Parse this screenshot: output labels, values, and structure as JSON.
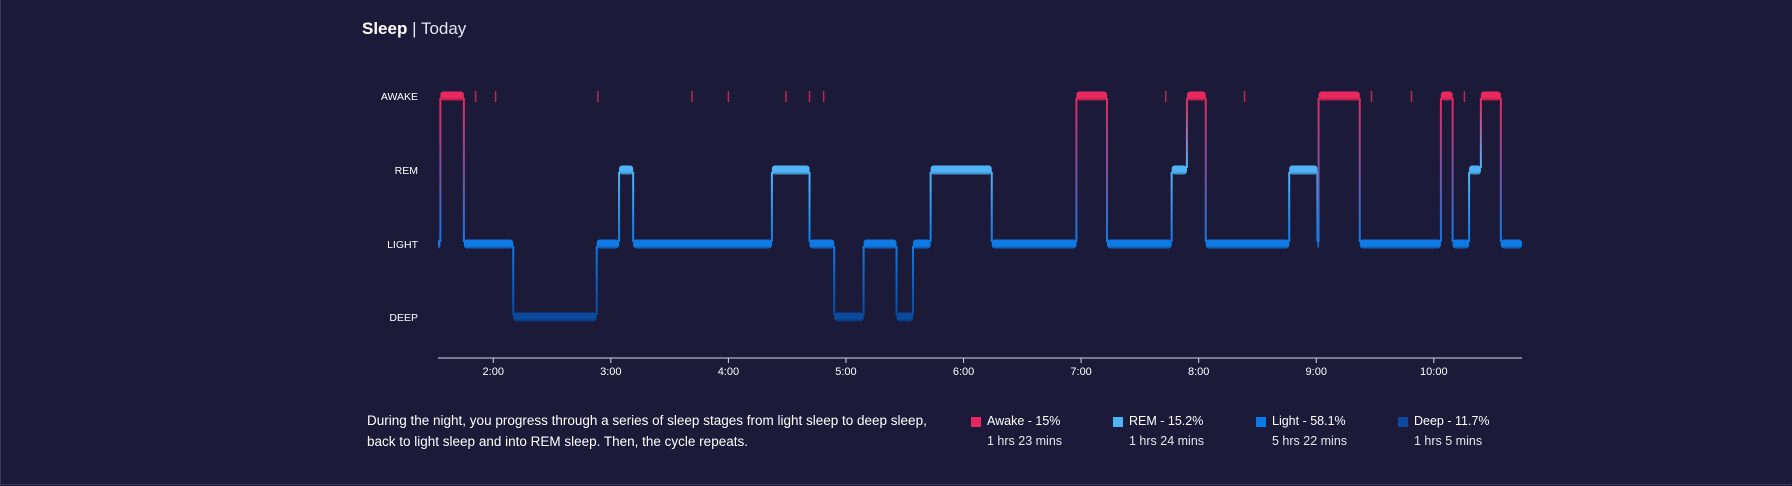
{
  "header": {
    "title": "Sleep",
    "separator": "|",
    "subtitle": "Today"
  },
  "description": "During the night, you progress through a series of sleep stages from light sleep to deep sleep, back to light sleep and into REM sleep. Then, the cycle repeats.",
  "legend": [
    {
      "label": "Awake - 15%",
      "duration": "1 hrs 23 mins",
      "color": "#e9285f"
    },
    {
      "label": "REM - 15.2%",
      "duration": "1 hrs 24 mins",
      "color": "#4fb4f7"
    },
    {
      "label": "Light - 58.1%",
      "duration": "5 hrs 22 mins",
      "color": "#0f7ae5"
    },
    {
      "label": "Deep - 11.7%",
      "duration": "1 hrs 5 mins",
      "color": "#0b4a9c"
    }
  ],
  "chart_data": {
    "type": "area",
    "stages": [
      "AWAKE",
      "REM",
      "LIGHT",
      "DEEP"
    ],
    "x_ticks": [
      "2:00",
      "3:00",
      "4:00",
      "5:00",
      "6:00",
      "7:00",
      "8:00",
      "9:00",
      "10:00"
    ],
    "x_tick_hours": [
      2,
      3,
      4,
      5,
      6,
      7,
      8,
      9,
      10
    ],
    "x_range_hours": [
      1.53,
      10.75
    ],
    "stage_colors": {
      "AWAKE": "#e9285f",
      "REM": "#4fb4f7",
      "LIGHT": "#0f7ae5",
      "DEEP": "#0b4a9c"
    },
    "segments": [
      {
        "stage": "LIGHT",
        "start": 1.53,
        "end": 1.55
      },
      {
        "stage": "AWAKE",
        "start": 1.55,
        "end": 1.75
      },
      {
        "stage": "LIGHT",
        "start": 1.75,
        "end": 2.17
      },
      {
        "stage": "DEEP",
        "start": 2.17,
        "end": 2.88
      },
      {
        "stage": "LIGHT",
        "start": 2.88,
        "end": 3.07
      },
      {
        "stage": "REM",
        "start": 3.07,
        "end": 3.19
      },
      {
        "stage": "LIGHT",
        "start": 3.19,
        "end": 4.37
      },
      {
        "stage": "REM",
        "start": 4.37,
        "end": 4.69
      },
      {
        "stage": "LIGHT",
        "start": 4.69,
        "end": 4.9
      },
      {
        "stage": "DEEP",
        "start": 4.9,
        "end": 5.15
      },
      {
        "stage": "LIGHT",
        "start": 5.15,
        "end": 5.43
      },
      {
        "stage": "DEEP",
        "start": 5.43,
        "end": 5.57
      },
      {
        "stage": "LIGHT",
        "start": 5.57,
        "end": 5.72
      },
      {
        "stage": "REM",
        "start": 5.72,
        "end": 6.24
      },
      {
        "stage": "LIGHT",
        "start": 6.24,
        "end": 6.96
      },
      {
        "stage": "AWAKE",
        "start": 6.96,
        "end": 7.22
      },
      {
        "stage": "LIGHT",
        "start": 7.22,
        "end": 7.77
      },
      {
        "stage": "REM",
        "start": 7.77,
        "end": 7.9
      },
      {
        "stage": "AWAKE",
        "start": 7.9,
        "end": 8.06
      },
      {
        "stage": "LIGHT",
        "start": 8.06,
        "end": 8.77
      },
      {
        "stage": "REM",
        "start": 8.77,
        "end": 9.01
      },
      {
        "stage": "LIGHT",
        "start": 9.01,
        "end": 9.02
      },
      {
        "stage": "AWAKE",
        "start": 9.02,
        "end": 9.37
      },
      {
        "stage": "LIGHT",
        "start": 9.37,
        "end": 10.06
      },
      {
        "stage": "AWAKE",
        "start": 10.06,
        "end": 10.16
      },
      {
        "stage": "LIGHT",
        "start": 10.16,
        "end": 10.3
      },
      {
        "stage": "REM",
        "start": 10.3,
        "end": 10.4
      },
      {
        "stage": "AWAKE",
        "start": 10.4,
        "end": 10.57
      },
      {
        "stage": "LIGHT",
        "start": 10.57,
        "end": 10.75
      }
    ],
    "brief_awakenings_hours": [
      1.85,
      2.02,
      2.89,
      3.69,
      4.0,
      4.49,
      4.69,
      4.81,
      7.72,
      8.39,
      9.47,
      9.81,
      10.26
    ]
  }
}
